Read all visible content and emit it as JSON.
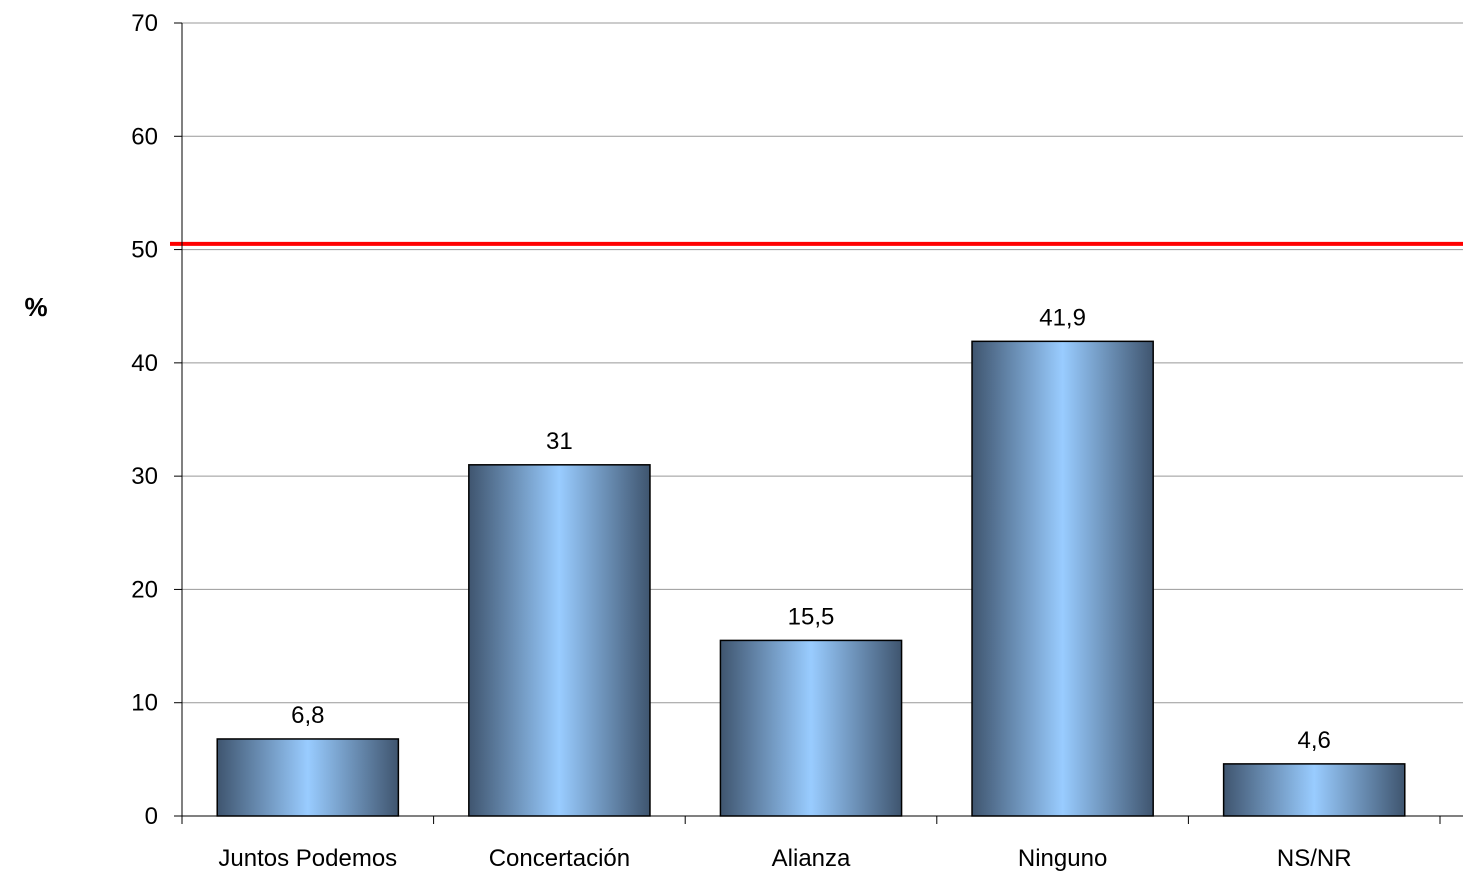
{
  "chart_data": {
    "type": "bar",
    "categories": [
      "Juntos Podemos",
      "Concertación",
      "Alianza",
      "Ninguno",
      "NS/NR"
    ],
    "values": [
      6.8,
      31,
      15.5,
      41.9,
      4.6
    ],
    "data_labels": [
      "6,8",
      "31",
      "15,5",
      "41,9",
      "4,6"
    ],
    "ylabel": "%",
    "ylim": [
      0,
      70
    ],
    "yticks": [
      0,
      10,
      20,
      30,
      40,
      50,
      60,
      70
    ],
    "grid": true,
    "reference_line": {
      "value": 50.5,
      "color": "#ff0000"
    },
    "bar_colors": {
      "edge": "#3f556f",
      "center": "#99ccff",
      "outline": "#000000"
    }
  }
}
